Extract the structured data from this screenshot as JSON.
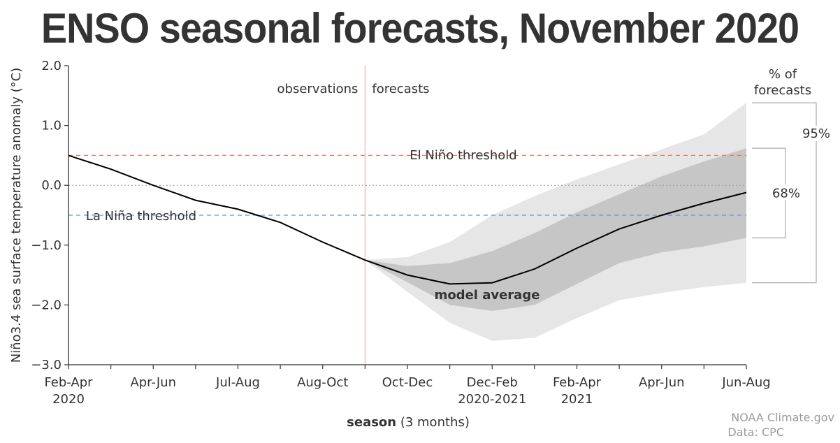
{
  "title": "ENSO seasonal forecasts, November 2020",
  "chart_data": {
    "type": "line",
    "ylabel": "Niño3.4 sea surface temperature anomaly (°C)",
    "xlabel_bold": "season",
    "xlabel_rest": " (3 months)",
    "ylim": [
      -3.0,
      2.0
    ],
    "yticks": [
      "2.0",
      "1.0",
      "0.0",
      "−1.0",
      "−2.0",
      "−3.0"
    ],
    "ytick_values": [
      2.0,
      1.0,
      0.0,
      -1.0,
      -2.0,
      -3.0
    ],
    "x_index_range": [
      0,
      16
    ],
    "xticks": [
      {
        "i": 0,
        "label": "Feb-Apr",
        "sub": "2020"
      },
      {
        "i": 2,
        "label": "Apr-Jun",
        "sub": ""
      },
      {
        "i": 4,
        "label": "Jul-Aug",
        "sub": ""
      },
      {
        "i": 6,
        "label": "Aug-Oct",
        "sub": ""
      },
      {
        "i": 8,
        "label": "Oct-Dec",
        "sub": ""
      },
      {
        "i": 10,
        "label": "Dec-Feb",
        "sub": "2020-2021"
      },
      {
        "i": 12,
        "label": "Feb-Apr",
        "sub": "2021"
      },
      {
        "i": 14,
        "label": "Apr-Jun",
        "sub": ""
      },
      {
        "i": 16,
        "label": "Jun-Aug",
        "sub": ""
      }
    ],
    "model_average": {
      "name": "model average",
      "x": [
        0,
        1,
        2,
        3,
        4,
        5,
        6,
        7,
        8,
        9,
        10,
        11,
        12,
        13,
        14,
        15,
        16
      ],
      "values": [
        0.5,
        0.27,
        0.0,
        -0.25,
        -0.4,
        -0.62,
        -0.95,
        -1.25,
        -1.5,
        -1.65,
        -1.63,
        -1.4,
        -1.05,
        -0.73,
        -0.5,
        -0.3,
        -0.12
      ]
    },
    "band_95": {
      "x": [
        7,
        8,
        9,
        10,
        11,
        12,
        13,
        14,
        15,
        16
      ],
      "upper": [
        -1.25,
        -1.2,
        -0.95,
        -0.5,
        -0.18,
        0.1,
        0.35,
        0.6,
        0.85,
        1.38
      ],
      "lower": [
        -1.25,
        -1.78,
        -2.3,
        -2.6,
        -2.55,
        -2.22,
        -1.92,
        -1.8,
        -1.7,
        -1.63
      ]
    },
    "band_68": {
      "x": [
        7,
        8,
        9,
        10,
        11,
        12,
        13,
        14,
        15,
        16
      ],
      "upper": [
        -1.25,
        -1.35,
        -1.3,
        -1.1,
        -0.8,
        -0.45,
        -0.15,
        0.15,
        0.4,
        0.62
      ],
      "lower": [
        -1.25,
        -1.62,
        -2.0,
        -2.1,
        -2.0,
        -1.65,
        -1.3,
        -1.12,
        -1.02,
        -0.88
      ]
    },
    "thresholds": {
      "el_nino": {
        "value": 0.5,
        "label": "El Niño threshold",
        "color": "#e8776b",
        "text_color": "#d62b28"
      },
      "la_nina": {
        "value": -0.5,
        "label": "La Niña threshold",
        "color": "#6e90cf",
        "text_color": "#2c6fbd"
      }
    },
    "split_x": 7,
    "observations_label": "observations",
    "forecasts_label": "forecasts",
    "legend": {
      "title_line1": "% of",
      "title_line2": "forecasts",
      "pct95": "95%",
      "pct68": "68%"
    }
  },
  "credit": {
    "line1": "NOAA Climate.gov",
    "line2": "Data: CPC"
  },
  "colors": {
    "band95": "#e6e6e6",
    "band68": "#c6c6c6",
    "line": "#000000",
    "split": "#f2b09e",
    "axis": "#333333"
  }
}
